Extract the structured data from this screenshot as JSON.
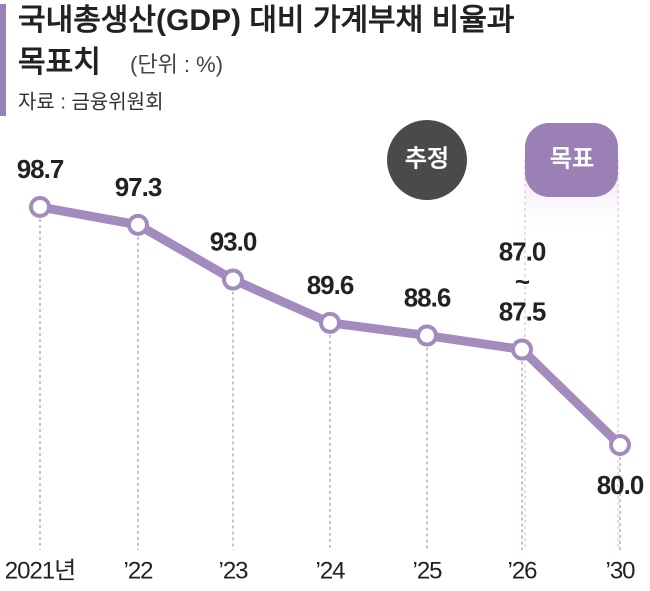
{
  "chart_data": {
    "type": "line",
    "title": "국내총생산(GDP) 대비 가계부채 비율과",
    "title_line2": "목표치",
    "subtitle": "(단위 : %)",
    "source": "자료 : 금융위원회",
    "categories": [
      "2021년",
      "’22",
      "’23",
      "’24",
      "’25",
      "’26",
      "’30"
    ],
    "values": [
      98.7,
      97.3,
      93.0,
      89.6,
      88.6,
      87.5,
      80.0
    ],
    "value_labels": [
      "98.7",
      "97.3",
      "93.0",
      "89.6",
      "88.6",
      "87.0 ~ 87.5",
      "80.0"
    ],
    "color": "#a38cbd",
    "annotations": [
      {
        "text": "추정",
        "category": 4,
        "color": "#4a4a4a"
      },
      {
        "text": "목표",
        "category": 6,
        "color": "#9b80b6"
      }
    ]
  }
}
